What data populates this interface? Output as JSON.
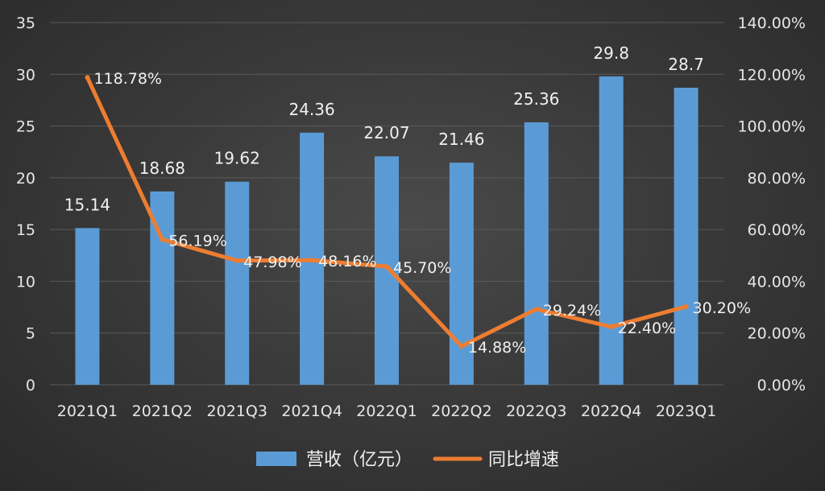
{
  "chart_data": {
    "type": "bar",
    "categories": [
      "2021Q1",
      "2021Q2",
      "2021Q3",
      "2021Q4",
      "2022Q1",
      "2022Q2",
      "2022Q3",
      "2022Q4",
      "2023Q1"
    ],
    "series": [
      {
        "name": "营收（亿元）",
        "type": "bar",
        "axis": "left",
        "values": [
          15.14,
          18.68,
          19.62,
          24.36,
          22.07,
          21.46,
          25.36,
          29.8,
          28.7
        ],
        "labels": [
          "15.14",
          "18.68",
          "19.62",
          "24.36",
          "22.07",
          "21.46",
          "25.36",
          "29.8",
          "28.7"
        ],
        "color": "#5b9bd5"
      },
      {
        "name": "同比增速",
        "type": "line",
        "axis": "right",
        "values": [
          118.78,
          56.19,
          47.98,
          48.16,
          45.7,
          14.88,
          29.24,
          22.4,
          30.2
        ],
        "labels": [
          "118.78%",
          "56.19%",
          "47.98%",
          "48.16%",
          "45.70%",
          "14.88%",
          "29.24%",
          "22.40%",
          "30.20%"
        ],
        "color": "#ed7d31"
      }
    ],
    "y_left": {
      "ylim": [
        0,
        35
      ],
      "ticks": [
        "0",
        "5",
        "10",
        "15",
        "20",
        "25",
        "30",
        "35"
      ]
    },
    "y_right": {
      "ylim": [
        0,
        140
      ],
      "ticks": [
        "0.00%",
        "20.00%",
        "40.00%",
        "60.00%",
        "80.00%",
        "100.00%",
        "120.00%",
        "140.00%"
      ]
    },
    "grid": true,
    "legend_position": "bottom",
    "colors": {
      "background": "#3a3a3a",
      "bar": "#5b9bd5",
      "line": "#ed7d31",
      "text": "#f0f0f0",
      "grid": "#5a5a5a"
    }
  }
}
